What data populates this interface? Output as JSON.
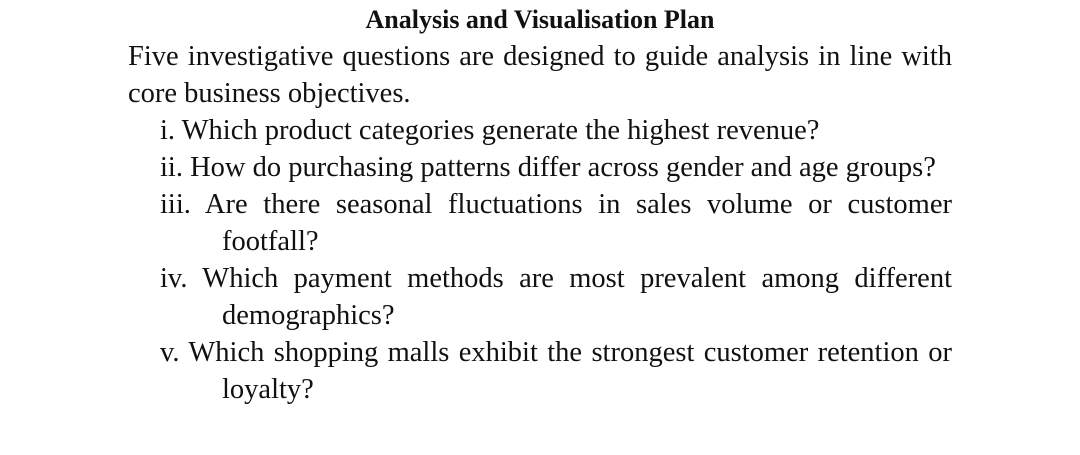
{
  "heading": "Analysis and Visualisation Plan",
  "intro": "Five investigative questions are designed to guide analysis in line with core business objectives.",
  "questions": [
    "i. Which product categories generate the highest revenue?",
    "ii. How do purchasing patterns differ across gender and age groups?",
    "iii. Are there seasonal fluctuations in sales volume or customer footfall?",
    "iv. Which payment methods are most prevalent among different demographics?",
    "v. Which shopping malls exhibit the strongest customer retention or loyalty?"
  ]
}
